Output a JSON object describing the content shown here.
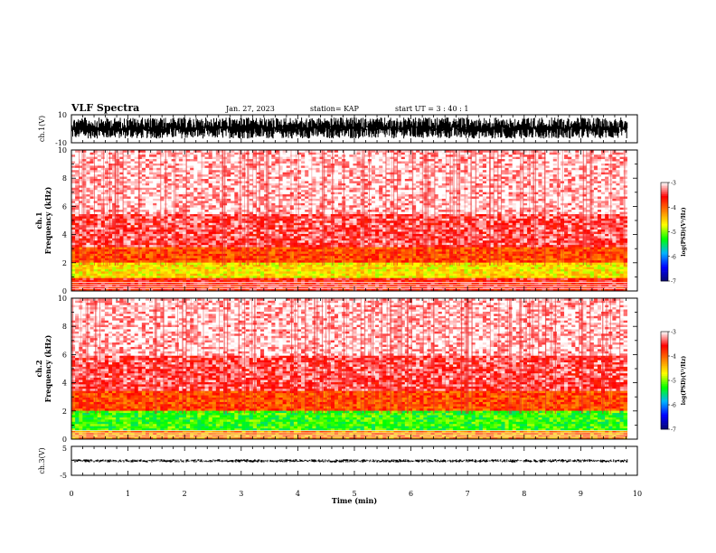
{
  "header": {
    "title": "VLF Spectra",
    "date": "Jan. 27, 2023",
    "station": "station= KAP",
    "start": "start  UT =  3 : 40 : 1"
  },
  "colors": {
    "spectrogram_scale": [
      "#08086e",
      "#0000ff",
      "#00b4ff",
      "#00ff00",
      "#ffff00",
      "#ff8000",
      "#ff0000",
      "#ffffff"
    ]
  },
  "chart_data": [
    {
      "type": "line",
      "name": "ch1-waveform",
      "ylabel": "ch.1(V)",
      "ylim": [
        -10,
        10
      ],
      "yticks": [
        "10",
        "-10"
      ],
      "xlim": [
        0,
        10
      ],
      "series": [
        {
          "values_range": [
            -7,
            8
          ]
        }
      ]
    },
    {
      "type": "heatmap",
      "name": "ch1-spectrogram",
      "ylabel_line1": "ch.1",
      "ylabel_line2": "Frequency (kHz)",
      "ylim": [
        0,
        10
      ],
      "yticks": [
        "0",
        "2",
        "4",
        "6",
        "8",
        "10"
      ],
      "xlim": [
        0,
        10
      ],
      "data_xmax": 9.82,
      "bands": [
        {
          "f": [
            0,
            0.9
          ],
          "level": -3.6
        },
        {
          "f": [
            0.9,
            2.0
          ],
          "level": -4.6
        },
        {
          "f": [
            2.0,
            3.2
          ],
          "level": -3.9
        },
        {
          "f": [
            3.2,
            5.5
          ],
          "level": -3.4
        },
        {
          "f": [
            5.5,
            10
          ],
          "level": -3.1
        }
      ],
      "colorbar": {
        "label": "log(PSD)(V²/Hz)",
        "ticks": [
          "-3",
          "-4",
          "-5",
          "-6",
          "-7"
        ],
        "range": [
          -7,
          -3
        ]
      }
    },
    {
      "type": "heatmap",
      "name": "ch2-spectrogram",
      "ylabel_line1": "ch.2",
      "ylabel_line2": "Frequency (kHz)",
      "ylim": [
        0,
        10
      ],
      "yticks": [
        "0",
        "2",
        "4",
        "6",
        "8",
        "10"
      ],
      "xlim": [
        0,
        10
      ],
      "data_xmax": 9.82,
      "bands": [
        {
          "f": [
            0,
            0.6
          ],
          "level": -4.2
        },
        {
          "f": [
            0.6,
            2.0
          ],
          "level": -5.2
        },
        {
          "f": [
            2.0,
            3.5
          ],
          "level": -3.9
        },
        {
          "f": [
            3.5,
            6.0
          ],
          "level": -3.4
        },
        {
          "f": [
            6.0,
            10
          ],
          "level": -3.1
        }
      ],
      "colorbar": {
        "label": "log(PSD)(V²/Hz)",
        "ticks": [
          "-3",
          "-4",
          "-5",
          "-6",
          "-7"
        ],
        "range": [
          -7,
          -3
        ]
      }
    },
    {
      "type": "line",
      "name": "ch3-waveform",
      "ylabel": "ch.3(V)",
      "ylim": [
        -5,
        5
      ],
      "yticks": [
        "5",
        "-5"
      ],
      "xlim": [
        0,
        10
      ],
      "series": [
        {
          "values_range": [
            -0.6,
            0.6
          ]
        }
      ]
    }
  ],
  "xaxis": {
    "label": "Time  (min)",
    "ticks": [
      "0",
      "1",
      "2",
      "3",
      "4",
      "5",
      "6",
      "7",
      "8",
      "9",
      "10"
    ]
  }
}
